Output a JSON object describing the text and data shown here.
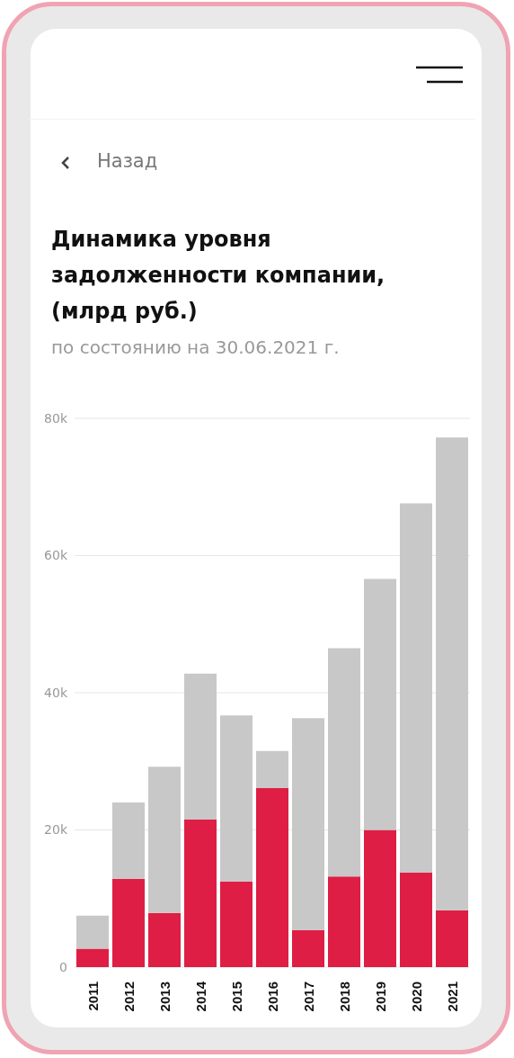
{
  "chart_data": {
    "type": "bar",
    "title": "Динамика уровня задолженности компании, (млрд руб.)",
    "subtitle": "по состоянию на 30.06.2021 г.",
    "annotations": [
      "Назад"
    ],
    "categories": [
      "2011",
      "2012",
      "2013",
      "2014",
      "2015",
      "2016",
      "2017",
      "2018",
      "2019",
      "2020",
      "2021"
    ],
    "stacked": true,
    "series": [
      {
        "color": "#de1e44",
        "values": [
          2700,
          12900,
          7900,
          21500,
          12500,
          26100,
          5400,
          13200,
          20000,
          13800,
          8300
        ]
      },
      {
        "color": "#c8c8c8",
        "values": [
          4800,
          11100,
          21300,
          21300,
          24200,
          5400,
          30900,
          33300,
          36600,
          53800,
          68900
        ]
      }
    ],
    "ylim": [
      0,
      80000
    ],
    "yticks": [
      0,
      {
        "value": 20000,
        "label": "20k"
      },
      {
        "value": 40000,
        "label": "40k"
      },
      {
        "value": 60000,
        "label": "60k"
      },
      {
        "value": 80000,
        "label": "80k"
      }
    ],
    "grid": "y"
  }
}
